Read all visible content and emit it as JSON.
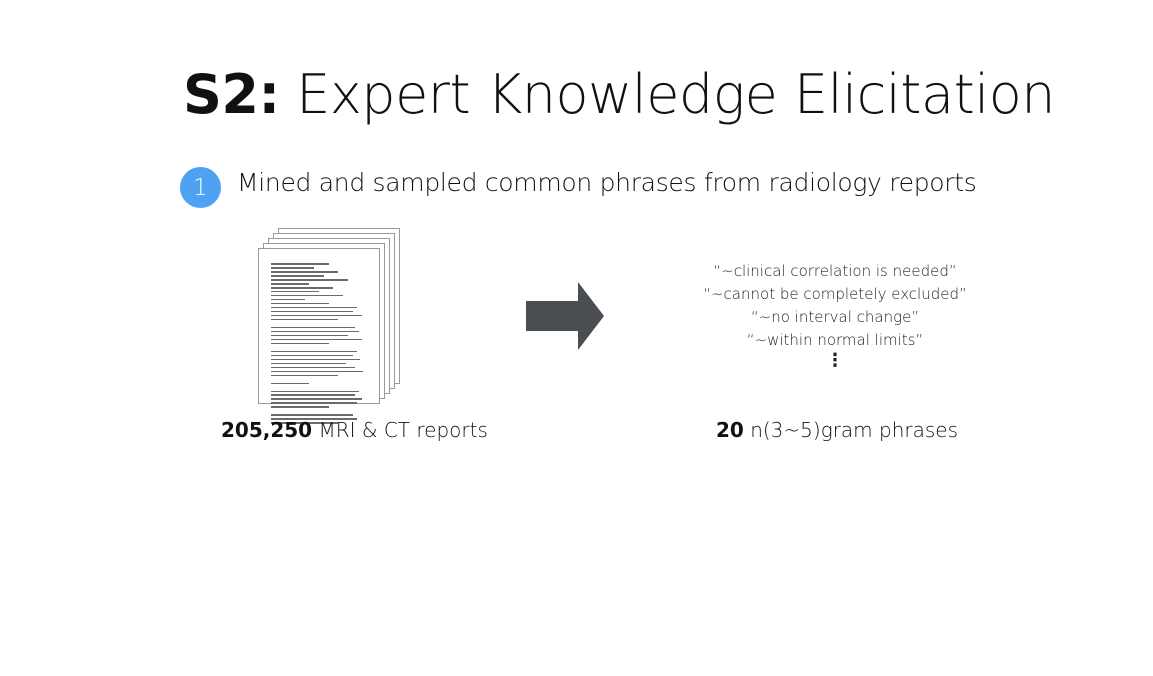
{
  "title": {
    "prefix": "S2:",
    "text": "Expert Knowledge Elicitation"
  },
  "step": {
    "number": "1",
    "text": "Mined and sampled common phrases from radiology reports"
  },
  "left_caption": {
    "count": "205,250",
    "text": "MRI & CT reports"
  },
  "phrases": [
    "“~clinical correlation is needed”",
    "“~cannot be completely excluded”",
    "“~no interval change”",
    "“~within normal limits”"
  ],
  "ellipsis": "⋮",
  "right_caption": {
    "count": "20",
    "text": "n(3~5)gram phrases"
  },
  "colors": {
    "badge": "#4ea1f3",
    "arrow": "#4a4d52"
  },
  "icons": {
    "documents": "document-stack-icon",
    "arrow": "right-arrow-icon"
  }
}
